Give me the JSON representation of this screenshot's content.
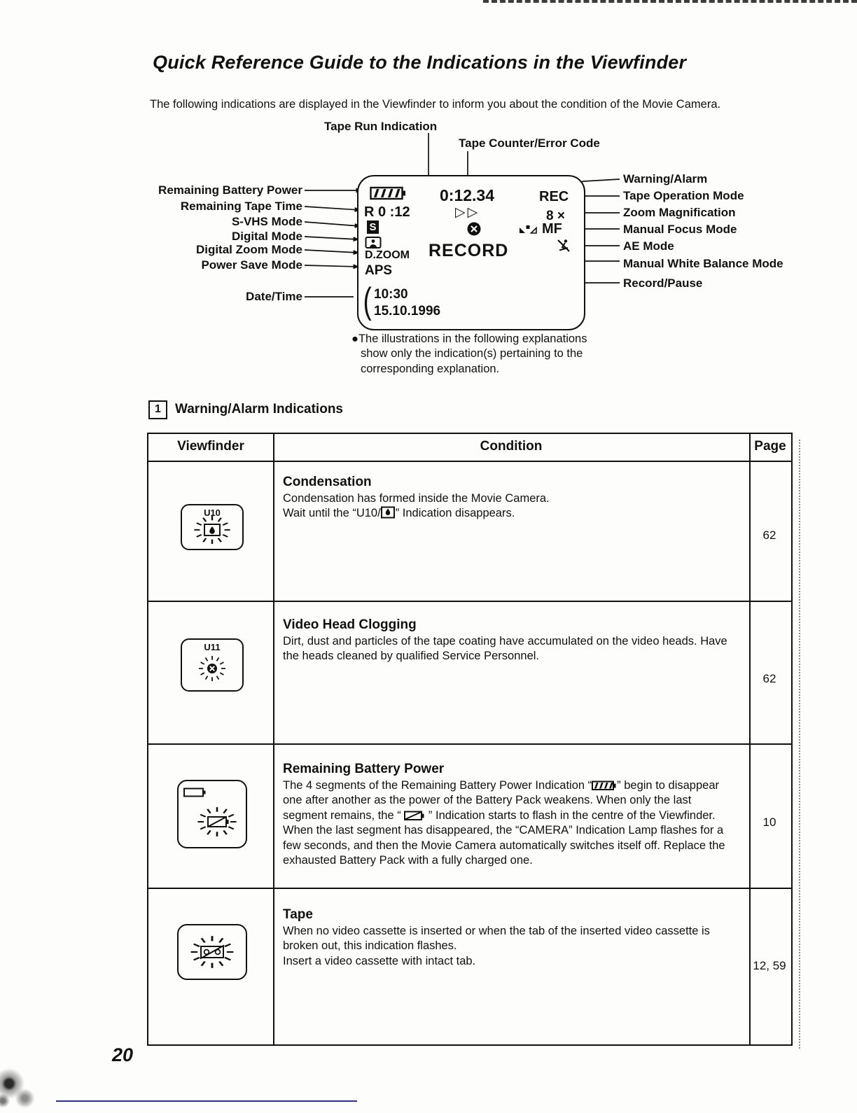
{
  "colors": {
    "ink": "#111111",
    "scan_underline_blue": "#2b2f9e"
  },
  "page": {
    "title": "Quick Reference Guide to the Indications in the Viewfinder",
    "intro": "The following indications are displayed in the Viewfinder to inform you about the condition of the Movie Camera.",
    "page_number": "20",
    "bullet": "●"
  },
  "diagram": {
    "top_labels": {
      "tape_run": "Tape Run Indication",
      "tape_counter": "Tape Counter/Error Code"
    },
    "left_labels": {
      "battery": "Remaining Battery Power",
      "tape_time": "Remaining Tape Time",
      "svhs": "S-VHS Mode",
      "digital": "Digital Mode",
      "digital_zoom": "Digital Zoom Mode",
      "power_save": "Power Save Mode",
      "date_time": "Date/Time"
    },
    "right_labels": {
      "warning": "Warning/Alarm",
      "tape_op": "Tape Operation Mode",
      "zoom_mag": "Zoom Magnification",
      "manual_focus": "Manual Focus Mode",
      "ae": "AE Mode",
      "white_balance": "Manual White Balance Mode",
      "record_pause": "Record/Pause"
    },
    "viewfinder": {
      "counter": "0:12.34",
      "remaining_tape": "R 0 :12",
      "svhs_badge": "S",
      "dzoom": "D.ZOOM",
      "aps": "APS",
      "play": "▷▷",
      "record": "RECORD",
      "rec": "REC",
      "zoom_mag": "8 ×",
      "mf": "MF",
      "brace": "(",
      "time": "10:30",
      "date": "15.10.1996"
    },
    "note": {
      "line1": "The illustrations in the following explanations",
      "line2": "show only the indication(s) pertaining to the",
      "line3": "corresponding explanation."
    }
  },
  "section": {
    "number": "1",
    "title": "Warning/Alarm Indications"
  },
  "table": {
    "headers": {
      "viewfinder": "Viewfinder",
      "condition": "Condition",
      "page": "Page"
    },
    "rows": [
      {
        "code": "U10",
        "title": "Condensation",
        "line1": "Condensation has formed inside the Movie Camera.",
        "line2a": "Wait until the “U10/",
        "line2b": "” Indication disappears.",
        "page": "62"
      },
      {
        "code": "U11",
        "title": "Video Head Clogging",
        "body": "Dirt, dust and particles of the tape coating have accumulated on the video heads. Have the heads cleaned by qualified Service Personnel.",
        "page": "62"
      },
      {
        "title": "Remaining Battery Power",
        "seg_a": "The 4 segments of the Remaining Battery Power Indication “",
        "seg_b": "” begin to disappear one after another as the power of the Battery Pack weakens. When only the last segment remains, the “ ",
        "seg_c": " ” Indication starts to flash in the centre of the Viewfinder. When the last segment has disappeared, the “CAMERA” Indication Lamp flashes for a few seconds, and then the Movie Camera automatically switches itself off. Replace the exhausted Battery Pack with a fully charged one.",
        "page": "10"
      },
      {
        "title": "Tape",
        "line1": "When no video cassette is inserted or when the tab of the inserted video cassette is broken out, this indication flashes.",
        "line2": "Insert a video cassette with intact tab.",
        "page": "12, 59"
      }
    ]
  }
}
